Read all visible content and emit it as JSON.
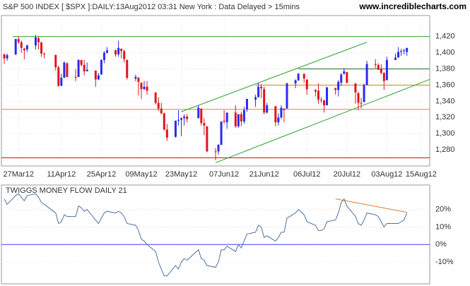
{
  "chart_data": [
    {
      "type": "candlestick",
      "title": "S&P 500 INDEX [ $SPX ]:DAILY:13Aug2012 03:31 New York : Data Delayed > 15mins",
      "source": "www.incrediblecharts.com",
      "up_color": "#2a2af0",
      "down_color": "#e0141e",
      "xlim": [
        "2012-03-21",
        "2012-08-18"
      ],
      "ylim": [
        1260,
        1446
      ],
      "yticks": [
        {
          "value": 1280,
          "label": "1,280"
        },
        {
          "value": 1300,
          "label": "1,300"
        },
        {
          "value": 1320,
          "label": "1,320"
        },
        {
          "value": 1340,
          "label": "1,340"
        },
        {
          "value": 1360,
          "label": "1,360"
        },
        {
          "value": 1380,
          "label": "1,380"
        },
        {
          "value": 1400,
          "label": "1,400"
        },
        {
          "value": 1420,
          "label": "1,420"
        }
      ],
      "xticks": [
        {
          "value": "2012-03-27",
          "label": "27Mar12"
        },
        {
          "value": "2012-04-11",
          "label": "11Apr12"
        },
        {
          "value": "2012-04-25",
          "label": "25Apr12"
        },
        {
          "value": "2012-05-09",
          "label": "09May12"
        },
        {
          "value": "2012-05-23",
          "label": "23May12"
        },
        {
          "value": "2012-06-07",
          "label": "07Jun12"
        },
        {
          "value": "2012-06-21",
          "label": "21Jun12"
        },
        {
          "value": "2012-07-06",
          "label": "06Jul12"
        },
        {
          "value": "2012-07-20",
          "label": "20Jul12"
        },
        {
          "value": "2012-08-03",
          "label": "03Aug12"
        },
        {
          "value": "2012-08-15",
          "label": "15Aug12"
        }
      ],
      "grid": true,
      "hlines": [
        {
          "value": 1420,
          "color": "#2e9a2e",
          "start": "2012-03-25"
        },
        {
          "value": 1380,
          "color": "#1a6b1a",
          "start": "2012-07-03"
        },
        {
          "value": 1360,
          "color": "#c88a1c",
          "start": "2012-06-18"
        },
        {
          "value": 1330,
          "color": "#d48a20"
        },
        {
          "value": 1270,
          "color": "#d01010"
        }
      ],
      "trendlines": [
        {
          "x": [
            "2012-05-23",
            "2012-07-27"
          ],
          "y": [
            1327,
            1413
          ],
          "color": "#2ea02e"
        },
        {
          "x": [
            "2012-06-04",
            "2012-08-18"
          ],
          "y": [
            1264,
            1367
          ],
          "color": "#2ea02e"
        }
      ],
      "x": [
        "2012-03-22",
        "2012-03-23",
        "2012-03-26",
        "2012-03-27",
        "2012-03-28",
        "2012-03-29",
        "2012-03-30",
        "2012-04-02",
        "2012-04-03",
        "2012-04-04",
        "2012-04-05",
        "2012-04-09",
        "2012-04-10",
        "2012-04-11",
        "2012-04-12",
        "2012-04-13",
        "2012-04-16",
        "2012-04-17",
        "2012-04-18",
        "2012-04-19",
        "2012-04-20",
        "2012-04-23",
        "2012-04-24",
        "2012-04-25",
        "2012-04-26",
        "2012-04-27",
        "2012-04-30",
        "2012-05-01",
        "2012-05-02",
        "2012-05-03",
        "2012-05-04",
        "2012-05-07",
        "2012-05-08",
        "2012-05-09",
        "2012-05-10",
        "2012-05-11",
        "2012-05-14",
        "2012-05-15",
        "2012-05-16",
        "2012-05-17",
        "2012-05-18",
        "2012-05-21",
        "2012-05-22",
        "2012-05-23",
        "2012-05-24",
        "2012-05-25",
        "2012-05-29",
        "2012-05-30",
        "2012-05-31",
        "2012-06-01",
        "2012-06-04",
        "2012-06-05",
        "2012-06-06",
        "2012-06-07",
        "2012-06-08",
        "2012-06-11",
        "2012-06-12",
        "2012-06-13",
        "2012-06-14",
        "2012-06-15",
        "2012-06-18",
        "2012-06-19",
        "2012-06-20",
        "2012-06-21",
        "2012-06-22",
        "2012-06-25",
        "2012-06-26",
        "2012-06-27",
        "2012-06-28",
        "2012-06-29",
        "2012-07-02",
        "2012-07-03",
        "2012-07-05",
        "2012-07-06",
        "2012-07-09",
        "2012-07-10",
        "2012-07-11",
        "2012-07-12",
        "2012-07-13",
        "2012-07-16",
        "2012-07-17",
        "2012-07-18",
        "2012-07-19",
        "2012-07-20",
        "2012-07-23",
        "2012-07-24",
        "2012-07-25",
        "2012-07-26",
        "2012-07-27",
        "2012-07-30",
        "2012-07-31",
        "2012-08-01",
        "2012-08-02",
        "2012-08-03",
        "2012-08-06",
        "2012-08-07",
        "2012-08-08",
        "2012-08-09",
        "2012-08-10"
      ],
      "open": [
        1398,
        1393,
        1398,
        1417,
        1413,
        1405,
        1404,
        1409,
        1418,
        1413,
        1399,
        1397,
        1382,
        1359,
        1369,
        1387,
        1370,
        1370,
        1391,
        1385,
        1377,
        1378,
        1367,
        1373,
        1391,
        1400,
        1403,
        1398,
        1405,
        1402,
        1391,
        1368,
        1369,
        1363,
        1355,
        1358,
        1351,
        1338,
        1331,
        1325,
        1305,
        1296,
        1316,
        1317,
        1319,
        1321,
        1319,
        1331,
        1313,
        1309,
        1278,
        1278,
        1286,
        1316,
        1314,
        1326,
        1309,
        1324,
        1315,
        1330,
        1342,
        1345,
        1358,
        1355,
        1326,
        1334,
        1314,
        1320,
        1331,
        1331,
        1362,
        1366,
        1374,
        1367,
        1354,
        1353,
        1342,
        1341,
        1335,
        1356,
        1354,
        1363,
        1374,
        1376,
        1362,
        1350,
        1338,
        1339,
        1360,
        1386,
        1385,
        1380,
        1375,
        1366,
        1391,
        1394,
        1401,
        1402,
        1401
      ],
      "high": [
        1399,
        1399,
        1417,
        1420,
        1415,
        1406,
        1410,
        1422,
        1420,
        1413,
        1400,
        1398,
        1384,
        1374,
        1389,
        1388,
        1380,
        1392,
        1391,
        1391,
        1388,
        1378,
        1375,
        1392,
        1402,
        1407,
        1404,
        1415,
        1405,
        1404,
        1392,
        1373,
        1370,
        1363,
        1365,
        1365,
        1351,
        1345,
        1338,
        1326,
        1312,
        1316,
        1329,
        1320,
        1324,
        1324,
        1335,
        1331,
        1319,
        1309,
        1282,
        1287,
        1315,
        1329,
        1326,
        1335,
        1324,
        1327,
        1333,
        1343,
        1348,
        1363,
        1361,
        1358,
        1338,
        1334,
        1325,
        1335,
        1331,
        1363,
        1367,
        1375,
        1374,
        1367,
        1355,
        1362,
        1345,
        1342,
        1358,
        1357,
        1366,
        1375,
        1381,
        1376,
        1362,
        1352,
        1344,
        1362,
        1390,
        1392,
        1387,
        1386,
        1376,
        1395,
        1399,
        1407,
        1405,
        1405,
        1406
      ],
      "low": [
        1386,
        1390,
        1397,
        1411,
        1400,
        1392,
        1401,
        1404,
        1404,
        1395,
        1393,
        1378,
        1358,
        1359,
        1369,
        1370,
        1365,
        1370,
        1383,
        1372,
        1377,
        1358,
        1366,
        1373,
        1387,
        1399,
        1395,
        1395,
        1393,
        1388,
        1367,
        1365,
        1347,
        1343,
        1354,
        1348,
        1336,
        1328,
        1324,
        1304,
        1291,
        1295,
        1310,
        1297,
        1310,
        1314,
        1319,
        1310,
        1298,
        1277,
        1267,
        1274,
        1286,
        1312,
        1306,
        1307,
        1307,
        1309,
        1312,
        1327,
        1333,
        1345,
        1344,
        1324,
        1325,
        1309,
        1310,
        1318,
        1314,
        1331,
        1356,
        1365,
        1363,
        1348,
        1346,
        1337,
        1338,
        1326,
        1335,
        1348,
        1346,
        1359,
        1373,
        1362,
        1337,
        1329,
        1331,
        1339,
        1360,
        1381,
        1379,
        1373,
        1354,
        1366,
        1391,
        1394,
        1396,
        1398,
        1396
      ],
      "close": [
        1393,
        1397,
        1417,
        1413,
        1406,
        1403,
        1409,
        1419,
        1413,
        1399,
        1398,
        1382,
        1359,
        1369,
        1388,
        1370,
        1370,
        1391,
        1385,
        1377,
        1379,
        1367,
        1372,
        1391,
        1400,
        1403,
        1398,
        1406,
        1402,
        1392,
        1369,
        1370,
        1364,
        1355,
        1358,
        1353,
        1338,
        1331,
        1325,
        1305,
        1295,
        1316,
        1317,
        1319,
        1321,
        1318,
        1332,
        1313,
        1310,
        1278,
        1278,
        1286,
        1315,
        1315,
        1326,
        1309,
        1324,
        1315,
        1329,
        1343,
        1345,
        1358,
        1356,
        1326,
        1335,
        1314,
        1320,
        1332,
        1329,
        1362,
        1366,
        1374,
        1368,
        1355,
        1352,
        1342,
        1342,
        1335,
        1357,
        1354,
        1364,
        1373,
        1377,
        1363,
        1351,
        1338,
        1338,
        1360,
        1386,
        1385,
        1379,
        1375,
        1365,
        1391,
        1394,
        1401,
        1402,
        1403,
        1406
      ]
    },
    {
      "type": "line",
      "title": "TWIGGS MONEY FLOW DAILY 21",
      "xlim": [
        "2012-03-21",
        "2012-08-18"
      ],
      "ylim": [
        -22.5,
        34
      ],
      "yticks": [
        {
          "value": -10,
          "label": "-10%"
        },
        {
          "value": 0,
          "label": "0%"
        },
        {
          "value": 10,
          "label": "10%"
        },
        {
          "value": 20,
          "label": "20%"
        }
      ],
      "grid": true,
      "hlines": [
        {
          "value": 0,
          "color": "#4040ff"
        }
      ],
      "trendlines": [
        {
          "x": [
            "2012-07-16",
            "2012-08-10"
          ],
          "y": [
            26.1,
            18.4
          ],
          "color": "#e08030"
        }
      ],
      "x": [
        "2012-03-22",
        "2012-03-23",
        "2012-03-26",
        "2012-03-27",
        "2012-03-28",
        "2012-03-29",
        "2012-03-30",
        "2012-04-02",
        "2012-04-03",
        "2012-04-04",
        "2012-04-05",
        "2012-04-09",
        "2012-04-10",
        "2012-04-11",
        "2012-04-12",
        "2012-04-13",
        "2012-04-16",
        "2012-04-17",
        "2012-04-18",
        "2012-04-19",
        "2012-04-20",
        "2012-04-23",
        "2012-04-24",
        "2012-04-25",
        "2012-04-26",
        "2012-04-27",
        "2012-04-30",
        "2012-05-01",
        "2012-05-02",
        "2012-05-03",
        "2012-05-04",
        "2012-05-07",
        "2012-05-08",
        "2012-05-09",
        "2012-05-10",
        "2012-05-11",
        "2012-05-14",
        "2012-05-15",
        "2012-05-16",
        "2012-05-17",
        "2012-05-18",
        "2012-05-21",
        "2012-05-22",
        "2012-05-23",
        "2012-05-24",
        "2012-05-25",
        "2012-05-29",
        "2012-05-30",
        "2012-05-31",
        "2012-06-01",
        "2012-06-04",
        "2012-06-05",
        "2012-06-06",
        "2012-06-07",
        "2012-06-08",
        "2012-06-11",
        "2012-06-12",
        "2012-06-13",
        "2012-06-14",
        "2012-06-15",
        "2012-06-18",
        "2012-06-19",
        "2012-06-20",
        "2012-06-21",
        "2012-06-22",
        "2012-06-25",
        "2012-06-26",
        "2012-06-27",
        "2012-06-28",
        "2012-06-29",
        "2012-07-02",
        "2012-07-03",
        "2012-07-05",
        "2012-07-06",
        "2012-07-09",
        "2012-07-10",
        "2012-07-11",
        "2012-07-12",
        "2012-07-13",
        "2012-07-16",
        "2012-07-17",
        "2012-07-18",
        "2012-07-19",
        "2012-07-20",
        "2012-07-23",
        "2012-07-24",
        "2012-07-25",
        "2012-07-26",
        "2012-07-27",
        "2012-07-30",
        "2012-07-31",
        "2012-08-01",
        "2012-08-02",
        "2012-08-03",
        "2012-08-06",
        "2012-08-07",
        "2012-08-08",
        "2012-08-09",
        "2012-08-10"
      ],
      "series": [
        {
          "color": "#5070a0",
          "values": [
            26,
            23,
            28,
            29,
            27,
            25,
            28,
            29,
            27,
            24,
            23,
            18,
            12,
            13,
            17,
            16,
            16,
            22,
            21,
            19,
            20,
            14,
            12,
            15,
            18,
            19,
            18,
            19,
            18,
            16,
            12,
            11,
            8,
            3,
            2,
            0,
            -4,
            -10,
            -14,
            -18,
            -18,
            -12,
            -14,
            -10,
            -8,
            -9,
            -3,
            -8,
            -9,
            -12,
            -13,
            -10,
            -3,
            -3,
            -1,
            -4,
            0,
            -2,
            2,
            6,
            7,
            11,
            10,
            4,
            5,
            2,
            4,
            7,
            7,
            15,
            18,
            20,
            17,
            13,
            11,
            8,
            8,
            9,
            13,
            14,
            18,
            24,
            26,
            22,
            16,
            12,
            11,
            14,
            18,
            17,
            16,
            13,
            10,
            12,
            12,
            12,
            13,
            14,
            18
          ]
        }
      ]
    }
  ]
}
